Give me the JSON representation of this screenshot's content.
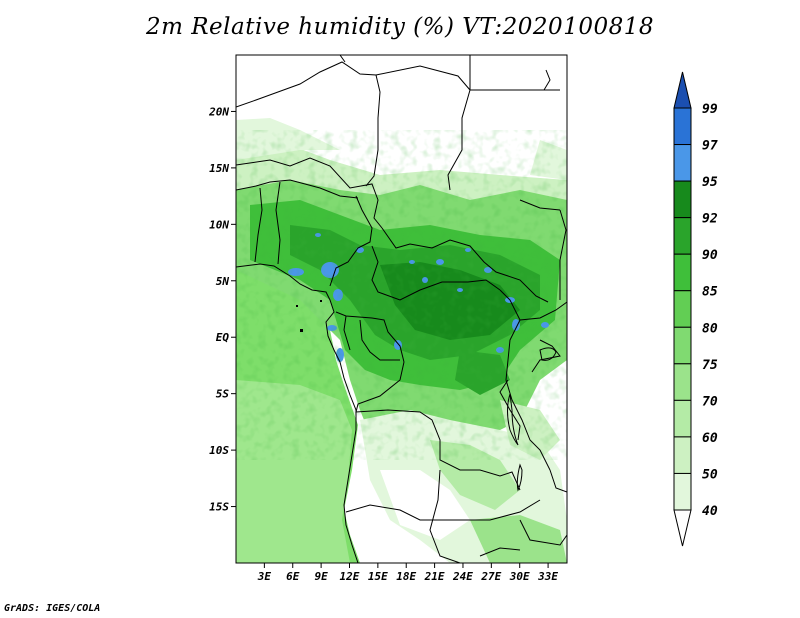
{
  "title": "2m Relative humidity (%) VT:2020100818",
  "footer": "GrADS: IGES/COLA",
  "map": {
    "lat_labels": [
      "20N",
      "15N",
      "10N",
      "5N",
      "EQ",
      "5S",
      "10S",
      "15S"
    ],
    "lat_values": [
      20,
      15,
      10,
      5,
      0,
      -5,
      -10,
      -15
    ],
    "lon_labels": [
      "3E",
      "6E",
      "9E",
      "12E",
      "15E",
      "18E",
      "21E",
      "24E",
      "27E",
      "30E",
      "33E"
    ],
    "lon_values": [
      3,
      6,
      9,
      12,
      15,
      18,
      21,
      24,
      27,
      30,
      33
    ],
    "lon_range": [
      0,
      35
    ],
    "lat_range": [
      -20,
      25
    ]
  },
  "colorbar": {
    "levels": [
      "40",
      "50",
      "60",
      "70",
      "75",
      "80",
      "85",
      "90",
      "92",
      "95",
      "97",
      "99"
    ],
    "colors": [
      "#f3fcf1",
      "#e2f7dc",
      "#cdf1c2",
      "#b4eba6",
      "#9be38b",
      "#80da71",
      "#62ce54",
      "#3fbf3a",
      "#2aa42b",
      "#178a1c",
      "#4a97e8",
      "#2a73d6",
      "#1b4fb0"
    ],
    "below_color": "#ffffff",
    "above_color": "#1b4fb0"
  },
  "colors": {
    "ocean": "#7ede6a",
    "coast_lines": "#000000"
  }
}
